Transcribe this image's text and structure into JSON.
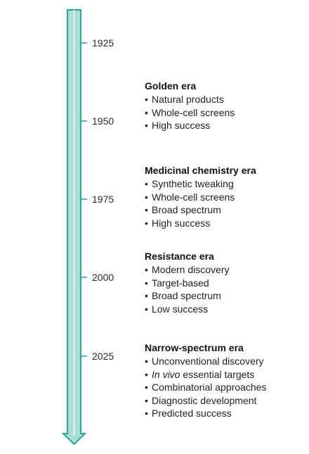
{
  "timeline": {
    "colors": {
      "fill": "#a9dcd7",
      "stroke": "#2aa497"
    },
    "years": [
      "1925",
      "1950",
      "1975",
      "2000",
      "2025"
    ]
  },
  "eras": [
    {
      "title": "Golden era",
      "items": [
        "Natural products",
        "Whole-cell screens",
        "High success"
      ]
    },
    {
      "title": "Medicinal chemistry era",
      "items": [
        "Synthetic tweaking",
        "Whole-cell screens",
        "Broad spectrum",
        "High success"
      ]
    },
    {
      "title": "Resistance era",
      "items": [
        "Modern discovery",
        "Target-based",
        "Broad spectrum",
        "Low success"
      ]
    },
    {
      "title": "Narrow-spectrum era",
      "items": [
        "Unconventional discovery",
        "essential targets",
        "Combinatorial approaches",
        "Diagnostic development",
        "Predicted success"
      ],
      "italic_prefix": "In vivo"
    }
  ]
}
